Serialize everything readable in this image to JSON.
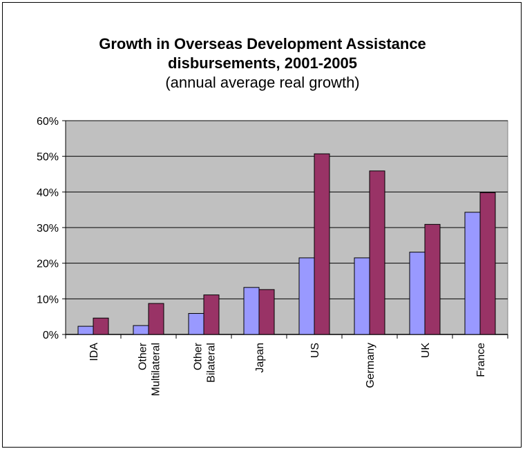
{
  "chart_data": {
    "type": "bar",
    "title": "Growth in Overseas Development Assistance disbursements, 2001-2005",
    "title_lines": [
      "Growth in Overseas Development Assistance",
      "disbursements, 2001-2005"
    ],
    "subtitle": "(annual average real growth)",
    "categories": [
      "IDA",
      "Other Multilateral",
      "Other Bilateral",
      "Japan",
      "US",
      "Germany",
      "UK",
      "France"
    ],
    "category_lines": [
      [
        "IDA"
      ],
      [
        "Other",
        "Multilateral"
      ],
      [
        "Other",
        "Bilateral"
      ],
      [
        "Japan"
      ],
      [
        "US"
      ],
      [
        "Germany"
      ],
      [
        "UK"
      ],
      [
        "France"
      ]
    ],
    "series": [
      {
        "values": [
          2.3,
          2.5,
          5.9,
          13.2,
          21.5,
          21.5,
          23.1,
          34.3
        ],
        "color": "#9999ff"
      },
      {
        "values": [
          4.6,
          8.7,
          11.1,
          12.6,
          50.7,
          45.9,
          30.9,
          39.8
        ],
        "color": "#993366"
      }
    ],
    "ylim": [
      0,
      60
    ],
    "yticks": [
      0,
      10,
      20,
      30,
      40,
      50,
      60
    ],
    "ytick_labels": [
      "0%",
      "10%",
      "20%",
      "30%",
      "40%",
      "50%",
      "60%"
    ],
    "grid": true,
    "plot_background": "#c0c0c0",
    "legend": "none"
  }
}
